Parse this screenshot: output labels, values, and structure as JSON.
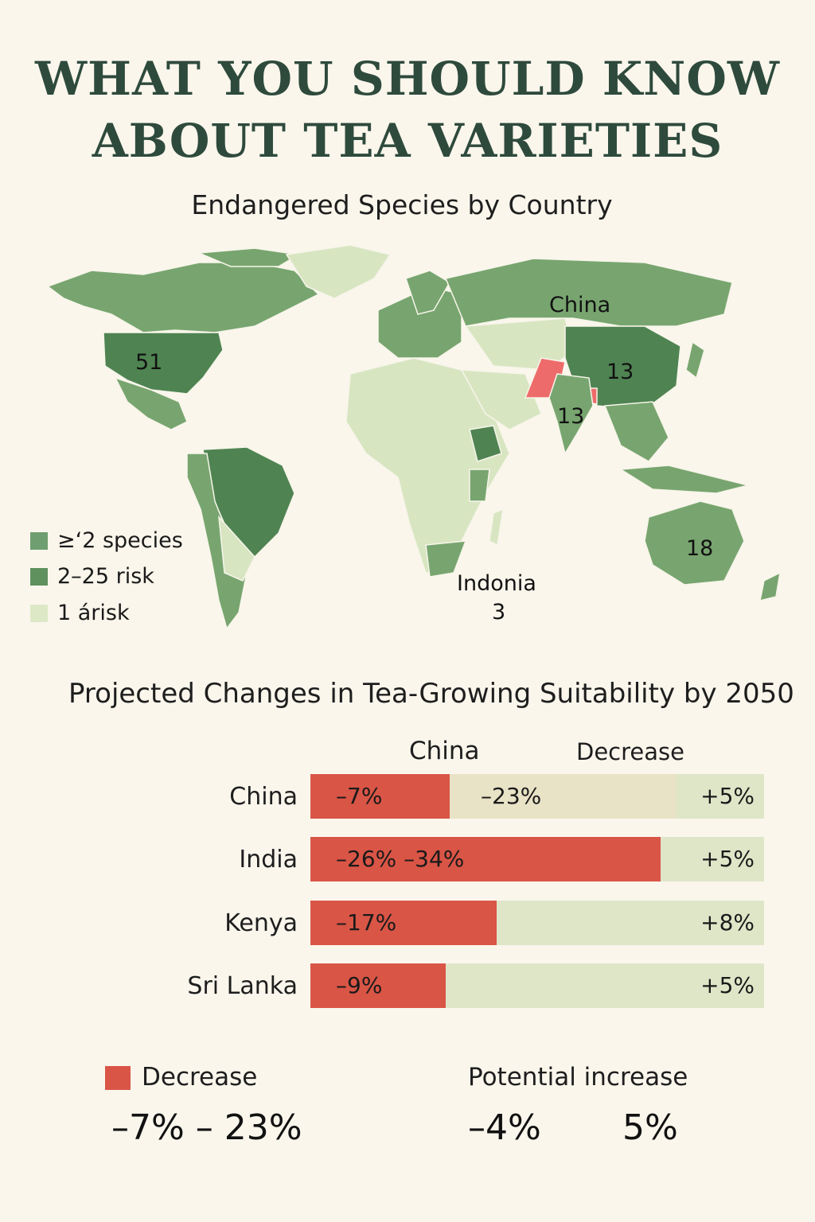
{
  "title": {
    "line1": "WHAT YOU SHOULD KNOW",
    "line2": "ABOUT TEA VARIETIES"
  },
  "map": {
    "title": "Endangered Species by Country",
    "labels": {
      "usa": "51",
      "china_name": "China",
      "china_value": "13",
      "india_value": "13",
      "australia_value": "18",
      "indonesia_name": "Indonia",
      "indonesia_value": "3"
    },
    "legend": [
      {
        "label": "≥‘2  species",
        "color": "#6f9e71"
      },
      {
        "label": "2–25 risk",
        "color": "#5f915f"
      },
      {
        "label": "1 árisk",
        "color": "#dde8c6"
      }
    ],
    "colors": {
      "dark": "#4f8452",
      "medium": "#78a56f",
      "light": "#d8e5c1",
      "highlight": "#ee6b6b"
    }
  },
  "suitability": {
    "title": "Projected Changes in Tea-Growing Suitability by 2050",
    "header_left": "China",
    "header_right": "Decrease",
    "rows": [
      {
        "country": "China",
        "decrease": -7,
        "middle": -23,
        "increase": 5,
        "decrease_label": "–7%",
        "middle_label": "–23%",
        "increase_label": "+5%"
      },
      {
        "country": "India",
        "decrease": -26,
        "middle": -34,
        "increase": 5,
        "decrease_label": "–26% –34%",
        "middle_label": "",
        "increase_label": "+5%"
      },
      {
        "country": "Kenya",
        "decrease": -17,
        "increase": 8,
        "decrease_label": "–17%",
        "middle_label": "",
        "increase_label": "+8%"
      },
      {
        "country": "Sri Lanka",
        "decrease": -9,
        "increase": 5,
        "decrease_label": "–9%",
        "middle_label": "",
        "increase_label": "+5%"
      }
    ],
    "colors": {
      "decrease": "#d95546",
      "middle": "#e8e2c6",
      "increase": "#dfe6c8"
    }
  },
  "bottom_legend": {
    "decrease_label": "Decrease",
    "increase_label": "Potential increase",
    "decrease_range": "–7% – 23%",
    "increase_low": "–4%",
    "increase_high": "5%"
  }
}
